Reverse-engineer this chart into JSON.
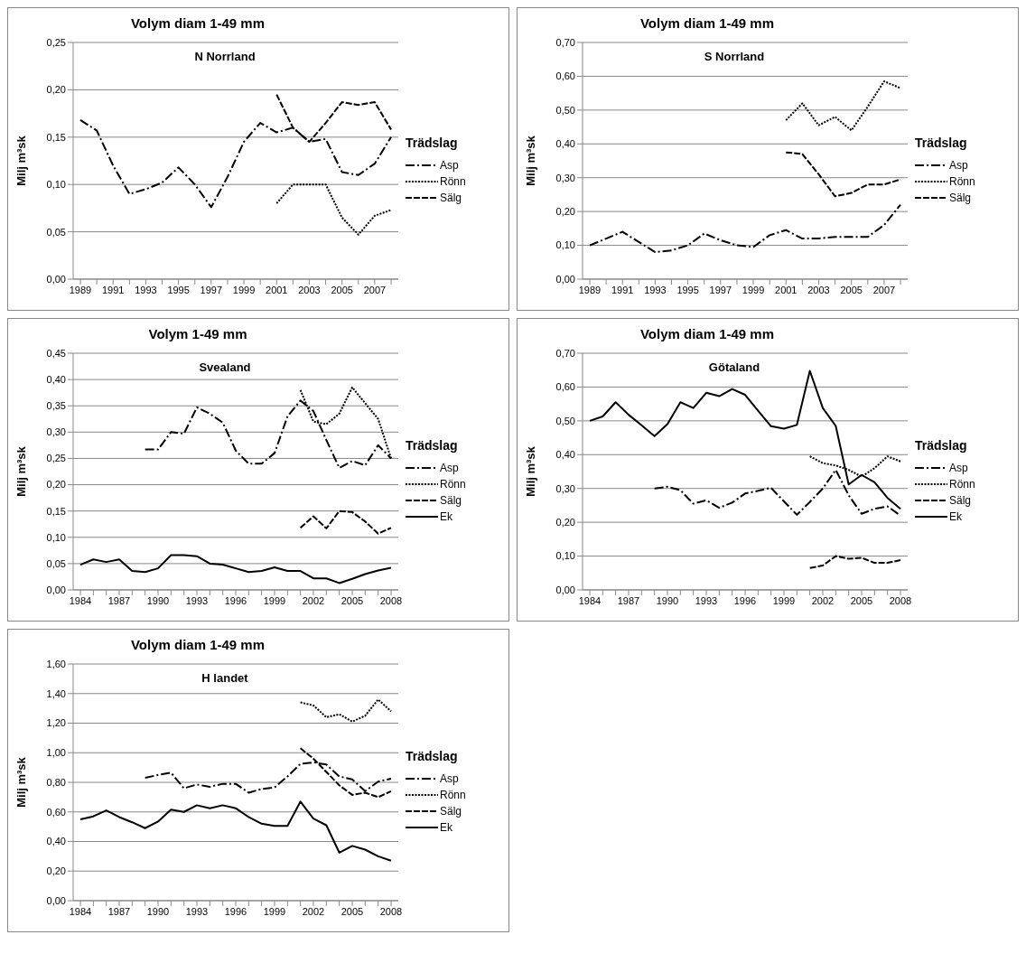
{
  "chart_data": [
    {
      "type": "line",
      "title": "Volym diam 1-49 mm",
      "subtitle": "N Norrland",
      "ylabel": "Milj m³sk",
      "legend_title": "Trädslag",
      "legend": "right",
      "grid": "y",
      "marker": "none",
      "categories": [
        "1989",
        null,
        "1991",
        null,
        "1993",
        null,
        "1995",
        null,
        "1997",
        null,
        "1999",
        null,
        "2001",
        null,
        "2003",
        null,
        "2005",
        null,
        "2007",
        null
      ],
      "ylim": [
        0,
        0.25
      ],
      "yticks": [
        {
          "value": 0,
          "label": "0,00"
        },
        {
          "value": 0.05,
          "label": "0,05"
        },
        {
          "value": 0.1,
          "label": "0,10"
        },
        {
          "value": 0.15,
          "label": "0,15"
        },
        {
          "value": 0.2,
          "label": "0,20"
        },
        {
          "value": 0.25,
          "label": "0,25"
        }
      ],
      "series": [
        {
          "name": "Asp",
          "color": "#000000",
          "line_style": "dashdot",
          "values": [
            0.168,
            0.157,
            0.12,
            0.09,
            0.095,
            0.102,
            0.118,
            0.1,
            0.076,
            0.108,
            0.145,
            0.165,
            0.155,
            0.16,
            0.145,
            0.148,
            0.113,
            0.11,
            0.122,
            0.15
          ]
        },
        {
          "name": "Rönn",
          "color": "#000000",
          "line_style": "dotted",
          "values": [
            null,
            null,
            null,
            null,
            null,
            null,
            null,
            null,
            null,
            null,
            null,
            null,
            0.08,
            0.1,
            0.1,
            0.1,
            0.065,
            0.047,
            0.067,
            0.073
          ]
        },
        {
          "name": "Sälg",
          "color": "#000000",
          "line_style": "dashed",
          "values": [
            null,
            null,
            null,
            null,
            null,
            null,
            null,
            null,
            null,
            null,
            null,
            null,
            0.195,
            0.16,
            0.145,
            0.165,
            0.187,
            0.184,
            0.187,
            0.158
          ]
        }
      ]
    },
    {
      "type": "line",
      "title": "Volym diam 1-49 mm",
      "subtitle": "S Norrland",
      "ylabel": "Milj m³sk",
      "legend_title": "Trädslag",
      "legend": "right",
      "grid": "y",
      "marker": "none",
      "categories": [
        "1989",
        null,
        "1991",
        null,
        "1993",
        null,
        "1995",
        null,
        "1997",
        null,
        "1999",
        null,
        "2001",
        null,
        "2003",
        null,
        "2005",
        null,
        "2007",
        null
      ],
      "ylim": [
        0,
        0.7
      ],
      "yticks": [
        {
          "value": 0,
          "label": "0,00"
        },
        {
          "value": 0.1,
          "label": "0,10"
        },
        {
          "value": 0.2,
          "label": "0,20"
        },
        {
          "value": 0.3,
          "label": "0,30"
        },
        {
          "value": 0.4,
          "label": "0,40"
        },
        {
          "value": 0.5,
          "label": "0,50"
        },
        {
          "value": 0.6,
          "label": "0,60"
        },
        {
          "value": 0.7,
          "label": "0,70"
        }
      ],
      "series": [
        {
          "name": "Asp",
          "color": "#000000",
          "line_style": "dashdot",
          "values": [
            0.1,
            0.12,
            0.14,
            0.11,
            0.08,
            0.085,
            0.1,
            0.135,
            0.115,
            0.1,
            0.095,
            0.13,
            0.145,
            0.12,
            0.12,
            0.125,
            0.125,
            0.125,
            0.16,
            0.22
          ]
        },
        {
          "name": "Rönn",
          "color": "#000000",
          "line_style": "dotted",
          "values": [
            null,
            null,
            null,
            null,
            null,
            null,
            null,
            null,
            null,
            null,
            null,
            null,
            0.47,
            0.52,
            0.455,
            0.48,
            0.44,
            0.51,
            0.585,
            0.565
          ]
        },
        {
          "name": "Sälg",
          "color": "#000000",
          "line_style": "dashed",
          "values": [
            null,
            null,
            null,
            null,
            null,
            null,
            null,
            null,
            null,
            null,
            null,
            null,
            0.375,
            0.37,
            0.31,
            0.245,
            0.255,
            0.28,
            0.28,
            0.295
          ]
        }
      ]
    },
    {
      "type": "line",
      "title": "Volym 1-49 mm",
      "subtitle": "Svealand",
      "ylabel": "Milj m³sk",
      "legend_title": "Trädslag",
      "legend": "right",
      "grid": "y",
      "marker": "none",
      "categories": [
        "1984",
        null,
        null,
        "1987",
        null,
        null,
        "1990",
        null,
        null,
        "1993",
        null,
        null,
        "1996",
        null,
        null,
        "1999",
        null,
        null,
        "2002",
        null,
        null,
        "2005",
        null,
        null,
        "2008"
      ],
      "ylim": [
        0,
        0.45
      ],
      "yticks": [
        {
          "value": 0,
          "label": "0,00"
        },
        {
          "value": 0.05,
          "label": "0,05"
        },
        {
          "value": 0.1,
          "label": "0,10"
        },
        {
          "value": 0.15,
          "label": "0,15"
        },
        {
          "value": 0.2,
          "label": "0,20"
        },
        {
          "value": 0.25,
          "label": "0,25"
        },
        {
          "value": 0.3,
          "label": "0,30"
        },
        {
          "value": 0.35,
          "label": "0,35"
        },
        {
          "value": 0.4,
          "label": "0,40"
        },
        {
          "value": 0.45,
          "label": "0,45"
        }
      ],
      "series": [
        {
          "name": "Asp",
          "color": "#000000",
          "line_style": "dashdot",
          "values": [
            null,
            null,
            null,
            null,
            null,
            0.267,
            0.267,
            0.3,
            0.297,
            0.347,
            0.335,
            0.318,
            0.265,
            0.24,
            0.24,
            0.26,
            0.33,
            0.36,
            0.34,
            0.285,
            0.232,
            0.245,
            0.237,
            0.275,
            0.25
          ]
        },
        {
          "name": "Rönn",
          "color": "#000000",
          "line_style": "dotted",
          "values": [
            null,
            null,
            null,
            null,
            null,
            null,
            null,
            null,
            null,
            null,
            null,
            null,
            null,
            null,
            null,
            null,
            null,
            0.38,
            0.32,
            0.315,
            0.335,
            0.385,
            0.355,
            0.325,
            0.25
          ]
        },
        {
          "name": "Sälg",
          "color": "#000000",
          "line_style": "dashed",
          "values": [
            null,
            null,
            null,
            null,
            null,
            null,
            null,
            null,
            null,
            null,
            null,
            null,
            null,
            null,
            null,
            null,
            null,
            0.118,
            0.14,
            0.117,
            0.15,
            0.148,
            0.13,
            0.107,
            0.118
          ]
        },
        {
          "name": "Ek",
          "color": "#000000",
          "line_style": "solid",
          "values": [
            0.048,
            0.058,
            0.053,
            0.058,
            0.036,
            0.034,
            0.041,
            0.066,
            0.066,
            0.064,
            0.05,
            0.048,
            0.041,
            0.034,
            0.036,
            0.043,
            0.036,
            0.036,
            0.022,
            0.022,
            0.013,
            0.021,
            0.03,
            0.037,
            0.042
          ]
        }
      ]
    },
    {
      "type": "line",
      "title": "Volym diam 1-49 mm",
      "subtitle": "Götaland",
      "ylabel": "Milj m³sk",
      "legend_title": "Trädslag",
      "legend": "right",
      "grid": "y",
      "marker": "none",
      "categories": [
        "1984",
        null,
        null,
        "1987",
        null,
        null,
        "1990",
        null,
        null,
        "1993",
        null,
        null,
        "1996",
        null,
        null,
        "1999",
        null,
        null,
        "2002",
        null,
        null,
        "2005",
        null,
        null,
        "2008"
      ],
      "ylim": [
        0,
        0.7
      ],
      "yticks": [
        {
          "value": 0,
          "label": "0,00"
        },
        {
          "value": 0.1,
          "label": "0,10"
        },
        {
          "value": 0.2,
          "label": "0,20"
        },
        {
          "value": 0.3,
          "label": "0,30"
        },
        {
          "value": 0.4,
          "label": "0,40"
        },
        {
          "value": 0.5,
          "label": "0,50"
        },
        {
          "value": 0.6,
          "label": "0,60"
        },
        {
          "value": 0.7,
          "label": "0,70"
        }
      ],
      "series": [
        {
          "name": "Asp",
          "color": "#000000",
          "line_style": "dashdot",
          "values": [
            null,
            null,
            null,
            null,
            null,
            0.3,
            0.305,
            0.295,
            0.255,
            0.265,
            0.243,
            0.258,
            0.285,
            0.293,
            0.302,
            0.262,
            0.222,
            0.26,
            0.3,
            0.355,
            0.28,
            0.225,
            0.24,
            0.247,
            0.22
          ]
        },
        {
          "name": "Rönn",
          "color": "#000000",
          "line_style": "dotted",
          "values": [
            null,
            null,
            null,
            null,
            null,
            null,
            null,
            null,
            null,
            null,
            null,
            null,
            null,
            null,
            null,
            null,
            null,
            0.395,
            0.375,
            0.368,
            0.355,
            0.335,
            0.36,
            0.395,
            0.38
          ]
        },
        {
          "name": "Sälg",
          "color": "#000000",
          "line_style": "dashed",
          "values": [
            null,
            null,
            null,
            null,
            null,
            null,
            null,
            null,
            null,
            null,
            null,
            null,
            null,
            null,
            null,
            null,
            null,
            0.065,
            0.072,
            0.1,
            0.092,
            0.095,
            0.08,
            0.08,
            0.088
          ]
        },
        {
          "name": "Ek",
          "color": "#000000",
          "line_style": "solid",
          "values": [
            0.5,
            0.513,
            0.555,
            0.518,
            0.487,
            0.455,
            0.49,
            0.555,
            0.538,
            0.583,
            0.573,
            0.594,
            0.577,
            0.53,
            0.484,
            0.477,
            0.488,
            0.648,
            0.538,
            0.485,
            0.312,
            0.34,
            0.318,
            0.272,
            0.24
          ]
        }
      ]
    },
    {
      "type": "line",
      "title": "Volym diam 1-49 mm",
      "subtitle": "H landet",
      "ylabel": "Milj m³sk",
      "legend_title": "Trädslag",
      "legend": "right",
      "grid": "y",
      "marker": "none",
      "categories": [
        "1984",
        null,
        null,
        "1987",
        null,
        null,
        "1990",
        null,
        null,
        "1993",
        null,
        null,
        "1996",
        null,
        null,
        "1999",
        null,
        null,
        "2002",
        null,
        null,
        "2005",
        null,
        null,
        "2008"
      ],
      "ylim": [
        0,
        1.6
      ],
      "yticks": [
        {
          "value": 0,
          "label": "0,00"
        },
        {
          "value": 0.2,
          "label": "0,20"
        },
        {
          "value": 0.4,
          "label": "0,40"
        },
        {
          "value": 0.6,
          "label": "0,60"
        },
        {
          "value": 0.8,
          "label": "0,80"
        },
        {
          "value": 1,
          "label": "1,00"
        },
        {
          "value": 1.2,
          "label": "1,20"
        },
        {
          "value": 1.4,
          "label": "1,40"
        },
        {
          "value": 1.6,
          "label": "1,60"
        }
      ],
      "series": [
        {
          "name": "Asp",
          "color": "#000000",
          "line_style": "dashdot",
          "values": [
            null,
            null,
            null,
            null,
            null,
            0.83,
            0.85,
            0.865,
            0.76,
            0.785,
            0.77,
            0.79,
            0.79,
            0.73,
            0.755,
            0.765,
            0.84,
            0.925,
            0.935,
            0.92,
            0.84,
            0.82,
            0.74,
            0.805,
            0.825
          ]
        },
        {
          "name": "Rönn",
          "color": "#000000",
          "line_style": "dotted",
          "values": [
            null,
            null,
            null,
            null,
            null,
            null,
            null,
            null,
            null,
            null,
            null,
            null,
            null,
            null,
            null,
            null,
            null,
            1.34,
            1.32,
            1.24,
            1.26,
            1.21,
            1.25,
            1.36,
            1.28
          ]
        },
        {
          "name": "Sälg",
          "color": "#000000",
          "line_style": "dashed",
          "values": [
            null,
            null,
            null,
            null,
            null,
            null,
            null,
            null,
            null,
            null,
            null,
            null,
            null,
            null,
            null,
            null,
            null,
            1.03,
            0.96,
            0.87,
            0.78,
            0.715,
            0.73,
            0.7,
            0.74
          ]
        },
        {
          "name": "Ek",
          "color": "#000000",
          "line_style": "solid",
          "values": [
            0.55,
            0.57,
            0.61,
            0.565,
            0.53,
            0.49,
            0.535,
            0.615,
            0.6,
            0.645,
            0.625,
            0.645,
            0.625,
            0.565,
            0.52,
            0.505,
            0.505,
            0.67,
            0.555,
            0.51,
            0.325,
            0.37,
            0.345,
            0.3,
            0.27
          ]
        }
      ]
    }
  ]
}
